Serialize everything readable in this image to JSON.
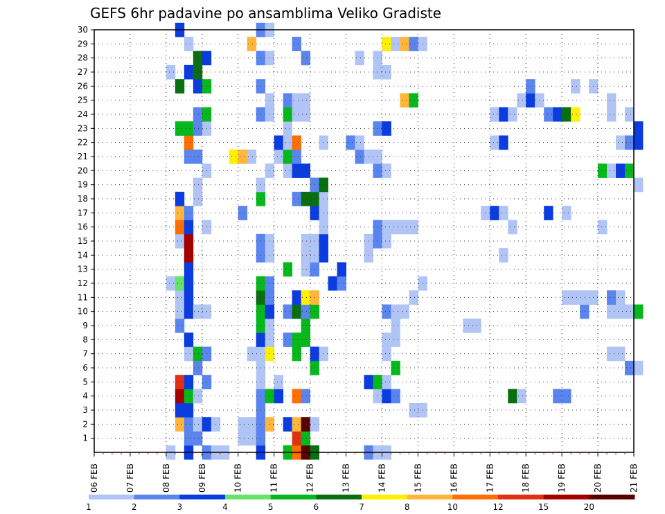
{
  "chart_data": {
    "type": "heatmap",
    "title": "GEFS 6hr padavine po ansamblima Veliko Gradiste",
    "xlabel": "",
    "ylabel": "",
    "x_ticks": [
      "06 FEB",
      "07 FEB",
      "08 FEB",
      "09 FEB",
      "10 FEB",
      "11 FEB",
      "12 FEB",
      "13 FEB",
      "14 FEB",
      "15 FEB",
      "16 FEB",
      "17 FEB",
      "18 FEB",
      "19 FEB",
      "20 FEB",
      "21 FEB"
    ],
    "x_range_days": [
      0,
      15
    ],
    "y_ticks": [
      1,
      2,
      3,
      4,
      5,
      6,
      7,
      8,
      9,
      10,
      11,
      12,
      13,
      14,
      15,
      16,
      17,
      18,
      19,
      20,
      21,
      22,
      23,
      24,
      25,
      26,
      27,
      28,
      29,
      30
    ],
    "y_range_member": [
      0,
      30
    ],
    "time_step_hours": 6,
    "grid": true,
    "legend": {
      "position": "bottom",
      "labels": [
        "1",
        "2",
        "3",
        "4",
        "5",
        "6",
        "7",
        "8",
        "10",
        "12",
        "15",
        "20"
      ],
      "colors": [
        "#b0c4f5",
        "#5a84ee",
        "#0b3ce0",
        "#66e36a",
        "#06b81b",
        "#087010",
        "#fff000",
        "#ffb63a",
        "#ff6e00",
        "#e03212",
        "#a50000",
        "#5a0000"
      ]
    },
    "cells": [
      [
        0,
        8,
        1
      ],
      [
        0,
        8.5,
        3
      ],
      [
        0,
        9,
        2
      ],
      [
        0,
        9.25,
        1
      ],
      [
        0,
        9.5,
        1
      ],
      [
        0,
        10.5,
        3
      ],
      [
        0,
        11.25,
        5
      ],
      [
        0,
        11.5,
        10
      ],
      [
        0,
        11.75,
        20
      ],
      [
        0,
        12,
        6
      ],
      [
        0,
        13.5,
        2
      ],
      [
        0,
        13.75,
        1
      ],
      [
        0,
        14,
        1
      ],
      [
        1,
        8.5,
        2
      ],
      [
        1,
        8.75,
        2
      ],
      [
        1,
        10,
        1
      ],
      [
        1,
        10.25,
        1
      ],
      [
        1,
        10.5,
        2
      ],
      [
        1,
        11.5,
        12
      ],
      [
        1,
        11.75,
        5
      ],
      [
        2,
        8.25,
        8
      ],
      [
        2,
        8.5,
        2
      ],
      [
        2,
        8.75,
        1
      ],
      [
        2,
        9,
        3
      ],
      [
        2,
        9.25,
        1
      ],
      [
        2,
        10,
        1
      ],
      [
        2,
        10.25,
        1
      ],
      [
        2,
        10.5,
        2
      ],
      [
        2,
        10.75,
        8
      ],
      [
        2,
        11.25,
        3
      ],
      [
        2,
        11.5,
        8
      ],
      [
        2,
        11.75,
        20
      ],
      [
        2,
        12,
        1
      ],
      [
        3,
        8.25,
        3
      ],
      [
        3,
        8.5,
        3
      ],
      [
        3,
        10.5,
        2
      ],
      [
        3,
        14.75,
        1
      ],
      [
        3,
        15,
        1
      ],
      [
        4,
        8.25,
        15
      ],
      [
        4,
        8.5,
        5
      ],
      [
        4,
        8.75,
        1
      ],
      [
        4,
        10.5,
        2
      ],
      [
        4,
        10.75,
        5
      ],
      [
        4,
        11,
        3
      ],
      [
        4,
        11.5,
        10
      ],
      [
        4,
        11.75,
        2
      ],
      [
        4,
        13.75,
        1
      ],
      [
        4,
        14,
        3
      ],
      [
        4,
        14.25,
        2
      ],
      [
        4,
        17.5,
        6
      ],
      [
        4,
        17.75,
        1
      ],
      [
        4,
        18.75,
        2
      ],
      [
        4,
        19,
        2
      ],
      [
        5,
        8.25,
        12
      ],
      [
        5,
        8.5,
        3
      ],
      [
        5,
        9,
        2
      ],
      [
        5,
        10.5,
        1
      ],
      [
        5,
        11,
        1
      ],
      [
        5,
        13.5,
        3
      ],
      [
        5,
        13.75,
        5
      ],
      [
        5,
        14,
        1
      ],
      [
        6,
        8.75,
        2
      ],
      [
        6,
        10.5,
        1
      ],
      [
        6,
        12,
        5
      ],
      [
        6,
        14.25,
        5
      ],
      [
        6,
        20.75,
        2
      ],
      [
        6,
        21,
        1
      ],
      [
        7,
        8.5,
        1
      ],
      [
        7,
        8.75,
        5
      ],
      [
        7,
        9,
        2
      ],
      [
        7,
        10.25,
        1
      ],
      [
        7,
        10.5,
        1
      ],
      [
        7,
        10.75,
        7
      ],
      [
        7,
        11.5,
        5
      ],
      [
        7,
        12,
        3
      ],
      [
        7,
        12.25,
        1
      ],
      [
        7,
        14,
        1
      ],
      [
        7,
        20.25,
        1
      ],
      [
        7,
        20.5,
        1
      ],
      [
        8,
        8.5,
        3
      ],
      [
        8,
        10.5,
        3
      ],
      [
        8,
        10.75,
        1
      ],
      [
        8,
        11.25,
        2
      ],
      [
        8,
        11.5,
        5
      ],
      [
        8,
        11.75,
        5
      ],
      [
        8,
        14,
        1
      ],
      [
        8,
        14.25,
        1
      ],
      [
        9,
        8.25,
        2
      ],
      [
        9,
        10.5,
        5
      ],
      [
        9,
        10.75,
        1
      ],
      [
        9,
        11.75,
        5
      ],
      [
        9,
        14.25,
        1
      ],
      [
        9,
        16.25,
        1
      ],
      [
        9,
        16.5,
        1
      ],
      [
        10,
        8.25,
        1
      ],
      [
        10,
        8.5,
        3
      ],
      [
        10,
        8.75,
        1
      ],
      [
        10,
        9,
        1
      ],
      [
        10,
        10.5,
        5
      ],
      [
        10,
        10.75,
        3
      ],
      [
        10,
        11.25,
        2
      ],
      [
        10,
        11.5,
        6
      ],
      [
        10,
        11.75,
        2
      ],
      [
        10,
        12,
        5
      ],
      [
        10,
        14,
        2
      ],
      [
        10,
        14.25,
        1
      ],
      [
        10,
        14.5,
        1
      ],
      [
        10,
        19.5,
        2
      ],
      [
        10,
        20.25,
        1
      ],
      [
        10,
        20.5,
        1
      ],
      [
        10,
        20.75,
        1
      ],
      [
        10,
        21,
        5
      ],
      [
        11,
        8.25,
        1
      ],
      [
        11,
        8.5,
        3
      ],
      [
        11,
        10.5,
        6
      ],
      [
        11,
        10.75,
        2
      ],
      [
        11,
        11.5,
        3
      ],
      [
        11,
        11.75,
        7
      ],
      [
        11,
        12,
        8
      ],
      [
        11,
        14.75,
        1
      ],
      [
        11,
        19,
        1
      ],
      [
        11,
        19.25,
        1
      ],
      [
        11,
        19.5,
        1
      ],
      [
        11,
        19.75,
        1
      ],
      [
        11,
        20.25,
        2
      ],
      [
        11,
        20.5,
        1
      ],
      [
        12,
        8,
        1
      ],
      [
        12,
        8.25,
        4
      ],
      [
        12,
        8.5,
        3
      ],
      [
        12,
        10.5,
        5
      ],
      [
        12,
        10.75,
        2
      ],
      [
        12,
        12.5,
        3
      ],
      [
        12,
        12.75,
        2
      ],
      [
        12,
        15,
        1
      ],
      [
        13,
        8.5,
        3
      ],
      [
        13,
        11.25,
        5
      ],
      [
        13,
        11.75,
        1
      ],
      [
        13,
        12,
        2
      ],
      [
        13,
        12.75,
        3
      ],
      [
        14,
        8.5,
        15
      ],
      [
        14,
        10.5,
        2
      ],
      [
        14,
        10.75,
        1
      ],
      [
        14,
        11.75,
        1
      ],
      [
        14,
        12,
        1
      ],
      [
        14,
        12.25,
        3
      ],
      [
        14,
        13.5,
        1
      ],
      [
        14,
        17.25,
        1
      ],
      [
        15,
        8.25,
        1
      ],
      [
        15,
        8.5,
        15
      ],
      [
        15,
        10.5,
        2
      ],
      [
        15,
        10.75,
        1
      ],
      [
        15,
        11.75,
        1
      ],
      [
        15,
        12,
        1
      ],
      [
        15,
        12.25,
        3
      ],
      [
        15,
        13.5,
        1
      ],
      [
        15,
        13.75,
        2
      ],
      [
        15,
        14,
        1
      ],
      [
        16,
        8.25,
        10
      ],
      [
        16,
        8.5,
        3
      ],
      [
        16,
        9,
        1
      ],
      [
        16,
        12.25,
        1
      ],
      [
        16,
        13.75,
        2
      ],
      [
        16,
        14,
        1
      ],
      [
        16,
        14.25,
        1
      ],
      [
        16,
        14.5,
        1
      ],
      [
        16,
        14.75,
        1
      ],
      [
        16,
        17.5,
        1
      ],
      [
        16,
        20,
        1
      ],
      [
        17,
        8.25,
        8
      ],
      [
        17,
        8.5,
        2
      ],
      [
        17,
        10,
        2
      ],
      [
        17,
        12,
        3
      ],
      [
        17,
        12.25,
        1
      ],
      [
        17,
        16.75,
        1
      ],
      [
        17,
        17,
        3
      ],
      [
        17,
        17.25,
        1
      ],
      [
        17,
        18.5,
        3
      ],
      [
        17,
        19,
        1
      ],
      [
        18,
        8.25,
        3
      ],
      [
        18,
        8.75,
        1
      ],
      [
        18,
        10.5,
        5
      ],
      [
        18,
        11.5,
        2
      ],
      [
        18,
        11.75,
        6
      ],
      [
        18,
        12,
        6
      ],
      [
        18,
        12.25,
        1
      ],
      [
        19,
        8.75,
        1
      ],
      [
        19,
        10.5,
        1
      ],
      [
        19,
        12,
        2
      ],
      [
        19,
        12.25,
        6
      ],
      [
        19,
        21,
        1
      ],
      [
        20,
        9,
        1
      ],
      [
        20,
        10.75,
        1
      ],
      [
        20,
        11.25,
        1
      ],
      [
        20,
        11.5,
        3
      ],
      [
        20,
        11.75,
        3
      ],
      [
        20,
        13.75,
        2
      ],
      [
        20,
        14,
        1
      ],
      [
        20,
        20,
        5
      ],
      [
        20,
        20.25,
        1
      ],
      [
        20,
        20.5,
        3
      ],
      [
        20,
        20.75,
        5
      ],
      [
        21,
        8.5,
        2
      ],
      [
        21,
        8.75,
        2
      ],
      [
        21,
        9.75,
        7
      ],
      [
        21,
        10,
        8
      ],
      [
        21,
        10.25,
        1
      ],
      [
        21,
        11,
        1
      ],
      [
        21,
        11.25,
        5
      ],
      [
        21,
        11.5,
        2
      ],
      [
        21,
        13.25,
        2
      ],
      [
        21,
        13.5,
        1
      ],
      [
        21,
        13.75,
        1
      ],
      [
        22,
        8.5,
        10
      ],
      [
        22,
        11,
        3
      ],
      [
        22,
        11.25,
        1
      ],
      [
        22,
        11.5,
        10
      ],
      [
        22,
        12.25,
        1
      ],
      [
        22,
        13,
        2
      ],
      [
        22,
        13.25,
        1
      ],
      [
        22,
        17,
        1
      ],
      [
        22,
        17.25,
        3
      ],
      [
        22,
        20.5,
        1
      ],
      [
        22,
        20.75,
        2
      ],
      [
        22,
        21,
        3
      ],
      [
        23,
        8.25,
        5
      ],
      [
        23,
        8.5,
        5
      ],
      [
        23,
        8.75,
        2
      ],
      [
        23,
        9,
        1
      ],
      [
        23,
        11.25,
        1
      ],
      [
        23,
        13.75,
        2
      ],
      [
        23,
        14,
        3
      ],
      [
        23,
        21,
        3
      ],
      [
        24,
        8.75,
        2
      ],
      [
        24,
        9,
        5
      ],
      [
        24,
        10.5,
        2
      ],
      [
        24,
        10.75,
        1
      ],
      [
        24,
        11.25,
        5
      ],
      [
        24,
        11.5,
        1
      ],
      [
        24,
        11.75,
        1
      ],
      [
        24,
        17,
        1
      ],
      [
        24,
        17.25,
        3
      ],
      [
        24,
        17.5,
        1
      ],
      [
        24,
        18.5,
        2
      ],
      [
        24,
        18.75,
        3
      ],
      [
        24,
        19,
        6
      ],
      [
        24,
        19.25,
        7
      ],
      [
        24,
        20.25,
        1
      ],
      [
        24,
        20.75,
        1
      ],
      [
        25,
        10.75,
        1
      ],
      [
        25,
        11.25,
        2
      ],
      [
        25,
        11.5,
        1
      ],
      [
        25,
        11.75,
        1
      ],
      [
        25,
        14.5,
        8
      ],
      [
        25,
        14.75,
        5
      ],
      [
        25,
        17.75,
        1
      ],
      [
        25,
        18,
        3
      ],
      [
        25,
        18.25,
        1
      ],
      [
        25,
        20.25,
        1
      ],
      [
        26,
        8.25,
        6
      ],
      [
        26,
        8.75,
        3
      ],
      [
        26,
        9,
        5
      ],
      [
        26,
        10.5,
        2
      ],
      [
        26,
        18,
        2
      ],
      [
        26,
        19.25,
        1
      ],
      [
        26,
        19.75,
        1
      ],
      [
        27,
        8,
        1
      ],
      [
        27,
        8.5,
        3
      ],
      [
        27,
        8.75,
        6
      ],
      [
        27,
        13.75,
        1
      ],
      [
        27,
        14,
        1
      ],
      [
        28,
        8.75,
        6
      ],
      [
        28,
        9,
        3
      ],
      [
        28,
        10.5,
        2
      ],
      [
        28,
        10.75,
        1
      ],
      [
        28,
        11.75,
        2
      ],
      [
        28,
        13.25,
        1
      ],
      [
        28,
        13.75,
        1
      ],
      [
        29,
        8.5,
        1
      ],
      [
        29,
        10.25,
        8
      ],
      [
        29,
        11.5,
        2
      ],
      [
        29,
        14,
        7
      ],
      [
        29,
        14.25,
        1
      ],
      [
        29,
        14.5,
        8
      ],
      [
        29,
        14.75,
        2
      ],
      [
        29,
        15,
        1
      ],
      [
        30,
        8.25,
        3
      ],
      [
        30,
        10.5,
        2
      ],
      [
        30,
        10.75,
        1
      ]
    ]
  }
}
